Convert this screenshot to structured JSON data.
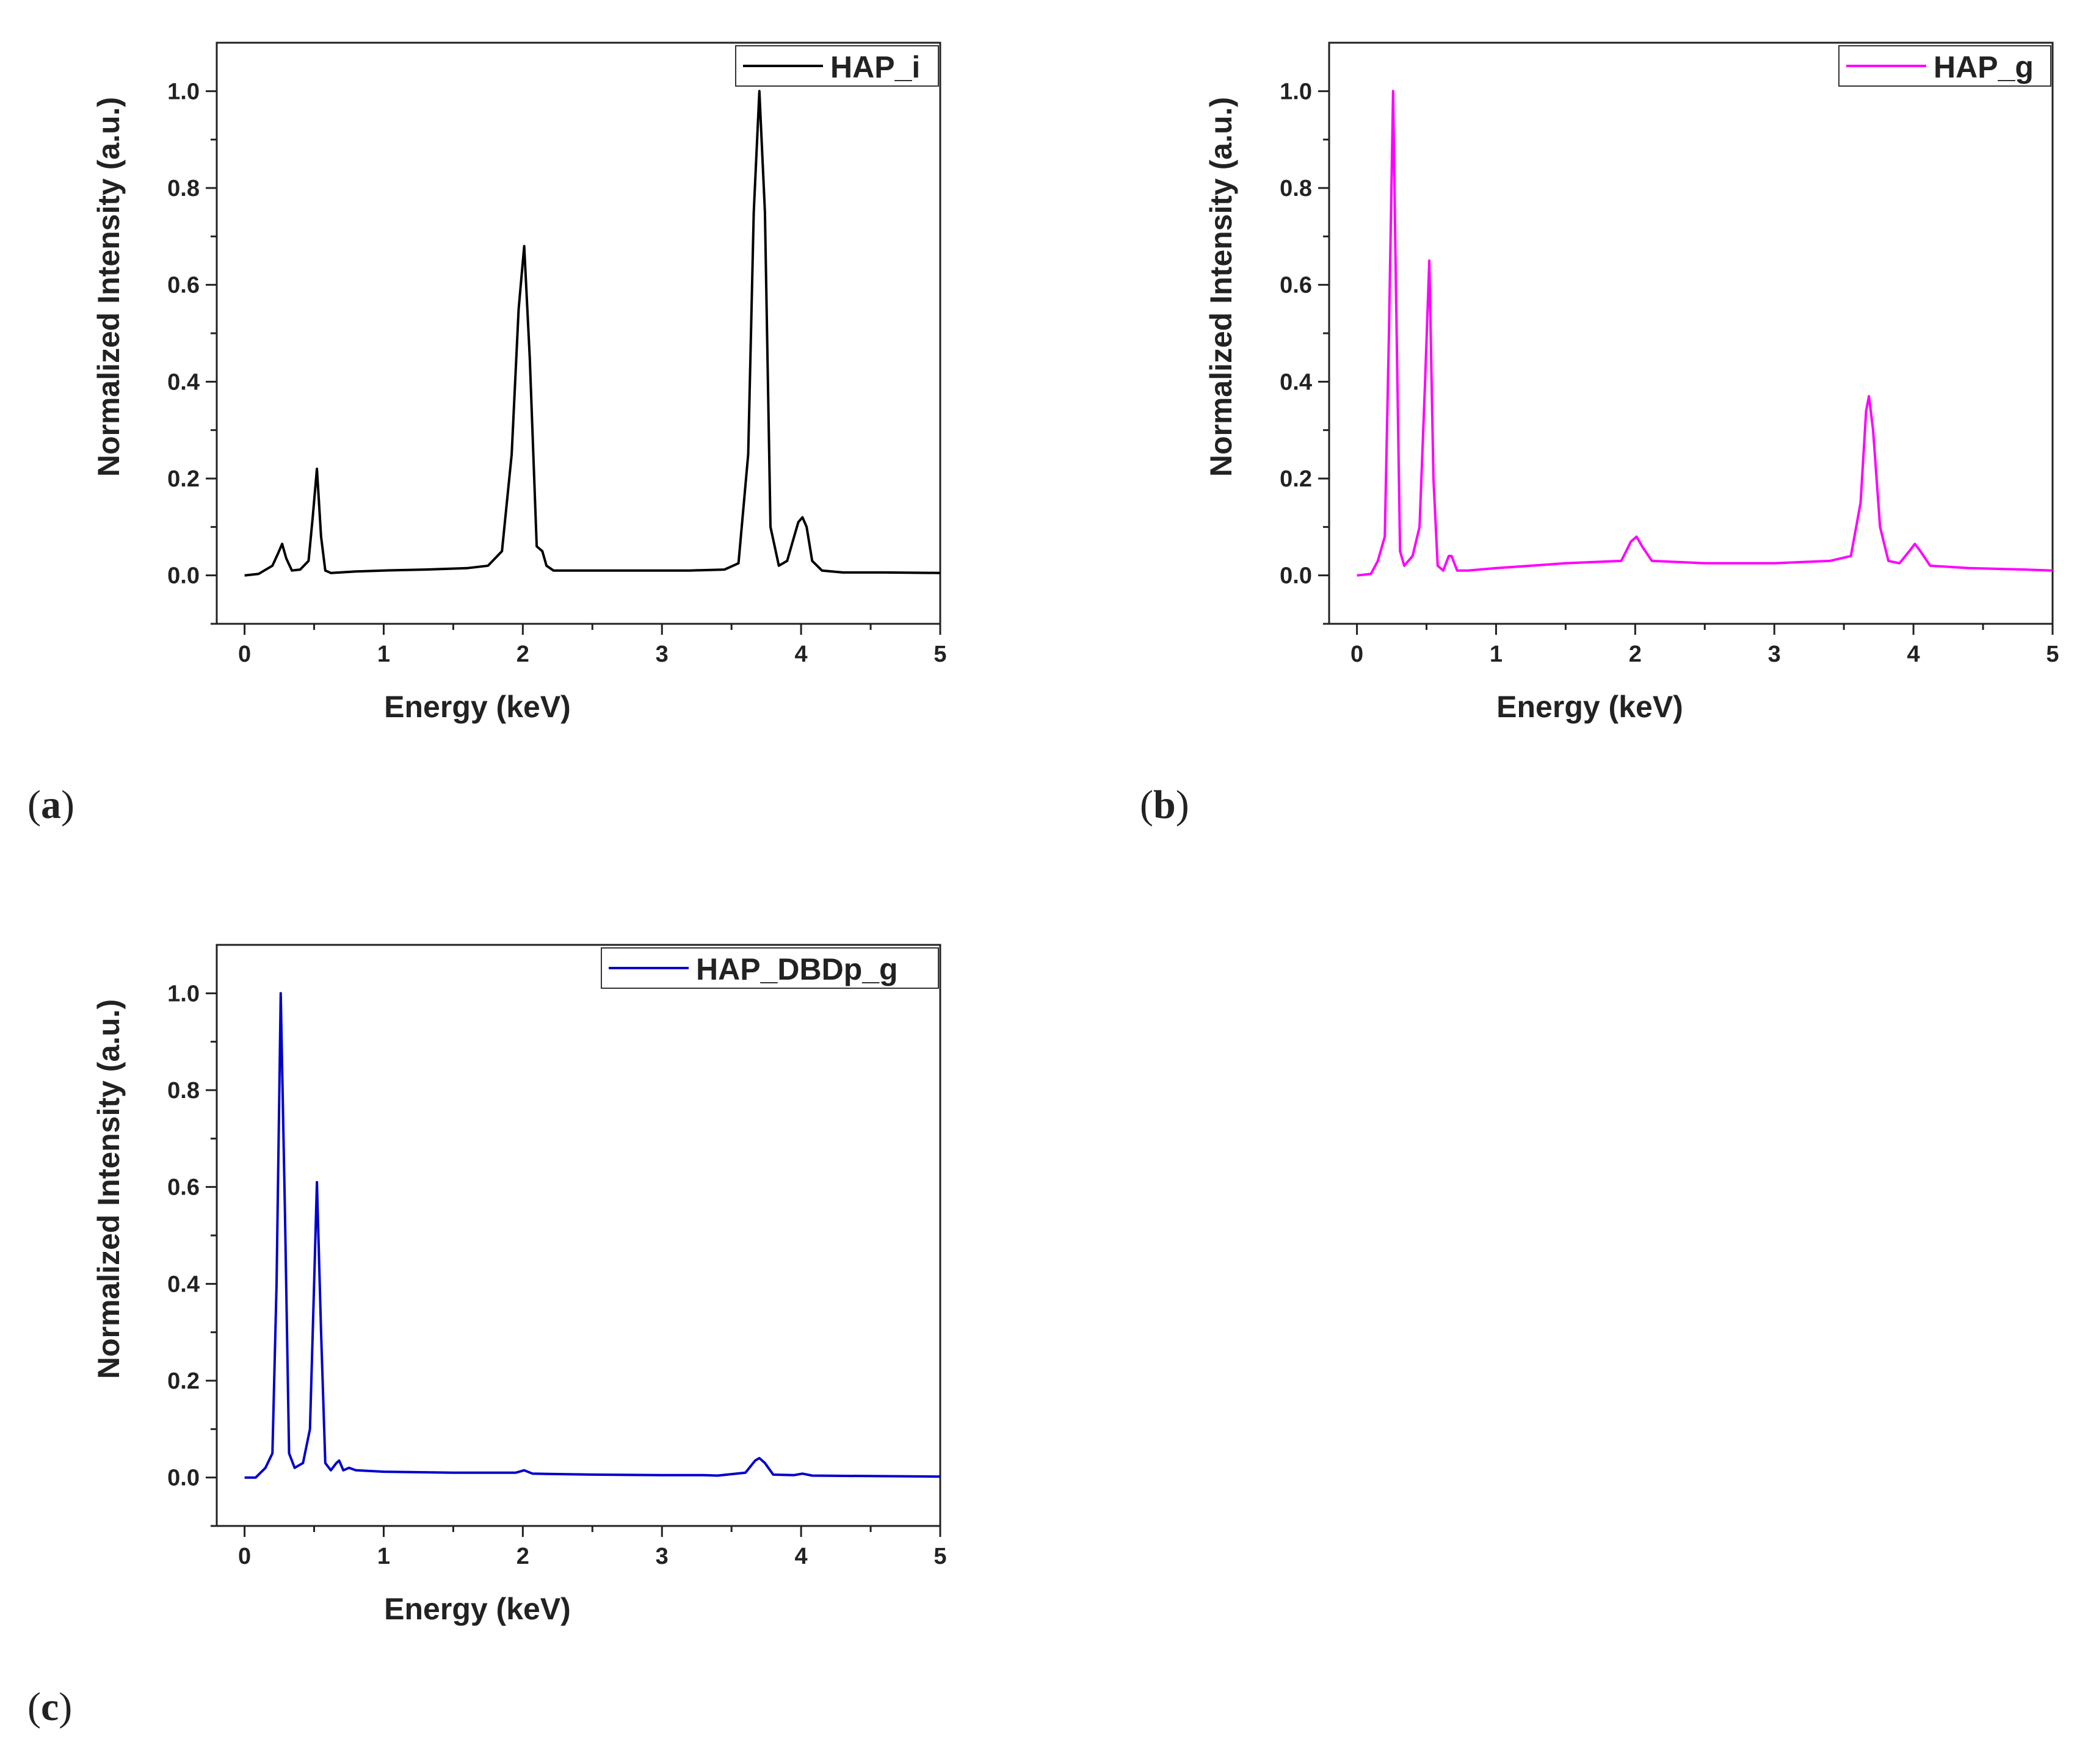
{
  "chart_data": [
    {
      "type": "line",
      "panel_label": "a",
      "title": "",
      "xlabel": "Energy (keV)",
      "ylabel": "Normalized Intensity (a.u.)",
      "xlim": [
        -0.2,
        5
      ],
      "ylim": [
        -0.1,
        1.1
      ],
      "xticks": [
        "0",
        "1",
        "2",
        "3",
        "4",
        "5"
      ],
      "yticks": [
        "0.0",
        "0.2",
        "0.4",
        "0.6",
        "0.8",
        "1.0"
      ],
      "grid": false,
      "legend_position": "top-right",
      "series": [
        {
          "name": "HAP_i",
          "color": "#000000",
          "x": [
            0.0,
            0.1,
            0.2,
            0.24,
            0.27,
            0.3,
            0.34,
            0.4,
            0.46,
            0.49,
            0.52,
            0.55,
            0.58,
            0.62,
            0.8,
            1.0,
            1.3,
            1.6,
            1.75,
            1.85,
            1.92,
            1.97,
            2.01,
            2.05,
            2.1,
            2.14,
            2.17,
            2.22,
            2.4,
            2.8,
            3.2,
            3.45,
            3.55,
            3.62,
            3.66,
            3.7,
            3.74,
            3.78,
            3.84,
            3.9,
            3.95,
            3.98,
            4.01,
            4.04,
            4.08,
            4.15,
            4.3,
            4.6,
            5.0
          ],
          "y": [
            0.0,
            0.003,
            0.02,
            0.045,
            0.065,
            0.035,
            0.01,
            0.012,
            0.03,
            0.12,
            0.22,
            0.08,
            0.01,
            0.005,
            0.008,
            0.01,
            0.012,
            0.015,
            0.02,
            0.05,
            0.25,
            0.55,
            0.68,
            0.45,
            0.06,
            0.05,
            0.02,
            0.01,
            0.01,
            0.01,
            0.01,
            0.012,
            0.025,
            0.25,
            0.75,
            1.0,
            0.75,
            0.1,
            0.02,
            0.03,
            0.08,
            0.11,
            0.12,
            0.1,
            0.03,
            0.01,
            0.006,
            0.006,
            0.005
          ]
        }
      ]
    },
    {
      "type": "line",
      "panel_label": "b",
      "title": "",
      "xlabel": "Energy (keV)",
      "ylabel": "Normalized Intensity (a.u.)",
      "xlim": [
        -0.2,
        5
      ],
      "ylim": [
        -0.1,
        1.1
      ],
      "xticks": [
        "0",
        "1",
        "2",
        "3",
        "4",
        "5"
      ],
      "yticks": [
        "0.0",
        "0.2",
        "0.4",
        "0.6",
        "0.8",
        "1.0"
      ],
      "grid": false,
      "legend_position": "top-right",
      "series": [
        {
          "name": "HAP_g",
          "color": "#ff00ff",
          "x": [
            0.0,
            0.1,
            0.15,
            0.2,
            0.23,
            0.26,
            0.28,
            0.31,
            0.34,
            0.4,
            0.45,
            0.49,
            0.52,
            0.55,
            0.58,
            0.62,
            0.66,
            0.68,
            0.72,
            0.8,
            1.0,
            1.5,
            1.9,
            1.97,
            2.01,
            2.05,
            2.12,
            2.5,
            3.0,
            3.4,
            3.55,
            3.62,
            3.66,
            3.68,
            3.71,
            3.76,
            3.82,
            3.9,
            3.97,
            4.01,
            4.05,
            4.12,
            4.4,
            4.8,
            5.0
          ],
          "y": [
            0.0,
            0.003,
            0.03,
            0.08,
            0.5,
            1.0,
            0.6,
            0.05,
            0.02,
            0.04,
            0.1,
            0.4,
            0.65,
            0.2,
            0.02,
            0.01,
            0.04,
            0.04,
            0.01,
            0.01,
            0.015,
            0.025,
            0.03,
            0.07,
            0.08,
            0.06,
            0.03,
            0.025,
            0.025,
            0.03,
            0.04,
            0.15,
            0.34,
            0.37,
            0.3,
            0.1,
            0.03,
            0.025,
            0.05,
            0.065,
            0.05,
            0.02,
            0.015,
            0.012,
            0.01
          ]
        }
      ]
    },
    {
      "type": "line",
      "panel_label": "c",
      "title": "",
      "xlabel": "Energy (keV)",
      "ylabel": "Normalized Intensity (a.u.)",
      "xlim": [
        -0.2,
        5
      ],
      "ylim": [
        -0.1,
        1.1
      ],
      "xticks": [
        "0",
        "1",
        "2",
        "3",
        "4",
        "5"
      ],
      "yticks": [
        "0.0",
        "0.2",
        "0.4",
        "0.6",
        "0.8",
        "1.0"
      ],
      "grid": false,
      "legend_position": "top-right",
      "series": [
        {
          "name": "HAP_DBDp_g",
          "color": "#0000cc",
          "x": [
            0.0,
            0.08,
            0.15,
            0.2,
            0.23,
            0.26,
            0.29,
            0.32,
            0.36,
            0.42,
            0.47,
            0.5,
            0.52,
            0.55,
            0.58,
            0.62,
            0.66,
            0.68,
            0.71,
            0.75,
            0.8,
            1.0,
            1.5,
            1.95,
            2.01,
            2.07,
            2.5,
            3.0,
            3.3,
            3.4,
            3.6,
            3.67,
            3.7,
            3.74,
            3.8,
            3.95,
            4.01,
            4.08,
            4.5,
            5.0
          ],
          "y": [
            0.0,
            0.0,
            0.02,
            0.05,
            0.4,
            1.0,
            0.55,
            0.05,
            0.02,
            0.03,
            0.1,
            0.4,
            0.61,
            0.3,
            0.03,
            0.015,
            0.03,
            0.035,
            0.015,
            0.02,
            0.015,
            0.012,
            0.01,
            0.01,
            0.015,
            0.008,
            0.006,
            0.005,
            0.005,
            0.004,
            0.01,
            0.035,
            0.04,
            0.03,
            0.006,
            0.005,
            0.008,
            0.004,
            0.003,
            0.002
          ]
        }
      ]
    }
  ]
}
